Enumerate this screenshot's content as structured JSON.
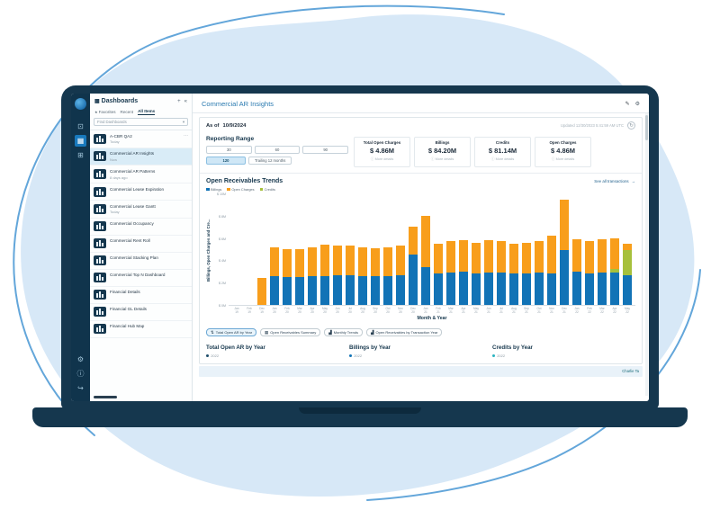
{
  "colors": {
    "accent_blue": "#1273b6",
    "orange": "#f89e1b",
    "green": "#a6c03c",
    "navy": "#15374e",
    "selected_row": "#d9ecf7",
    "blob_fill": "#d7e8f7",
    "blob_stroke": "#63a6da"
  },
  "icons": {
    "plus": "+",
    "collapse": "«",
    "star": "★",
    "chevron_down": "▾",
    "more": "⋯",
    "edit": "✎",
    "gear": "⚙",
    "refresh": "↻",
    "info": "ⓘ",
    "arrow_right": "→",
    "sort": "⇅",
    "table": "▦",
    "chart": "▟",
    "screens": "⊡",
    "dashboard": "▦",
    "apps": "⊞",
    "help": "ⓘ",
    "logout": "↪"
  },
  "rail": {
    "items": [
      {
        "name": "screens-icon",
        "glyph": "⊡",
        "active": false
      },
      {
        "name": "dashboards-icon",
        "glyph": "▦",
        "active": true
      },
      {
        "name": "apps-icon",
        "glyph": "⊞",
        "active": false
      }
    ],
    "bottom": [
      {
        "name": "settings-icon",
        "glyph": "⚙"
      },
      {
        "name": "help-icon",
        "glyph": "ⓘ"
      },
      {
        "name": "logout-icon",
        "glyph": "↪"
      }
    ]
  },
  "sidebar": {
    "title": "Dashboards",
    "search_placeholder": "Find Dashboards",
    "tabs": [
      {
        "label": "Favorites",
        "icon": "★",
        "active": false
      },
      {
        "label": "Recent",
        "active": false
      },
      {
        "label": "All Items",
        "active": true
      }
    ],
    "items": [
      {
        "label": "A-CBR QA2",
        "sub": "Today",
        "selected": false,
        "more": true
      },
      {
        "label": "Commercial AR Insights",
        "sub": "Now",
        "selected": true,
        "more": false
      },
      {
        "label": "Commercial AR Patterns",
        "sub": "8 days ago",
        "selected": false,
        "more": false
      },
      {
        "label": "Commercial Lease Expiration",
        "sub": "",
        "selected": false,
        "more": false
      },
      {
        "label": "Commercial Lease Gantt",
        "sub": "Today",
        "selected": false,
        "more": false
      },
      {
        "label": "Commercial Occupancy",
        "sub": "",
        "selected": false,
        "more": false
      },
      {
        "label": "Commercial Rent Roll",
        "sub": "",
        "selected": false,
        "more": false
      },
      {
        "label": "Commercial Stacking Plan",
        "sub": "",
        "selected": false,
        "more": false
      },
      {
        "label": "Commercial Top N Dashboard",
        "sub": "",
        "selected": false,
        "more": false
      },
      {
        "label": "Financial Details",
        "sub": "",
        "selected": false,
        "more": false
      },
      {
        "label": "Financial GL Details",
        "sub": "",
        "selected": false,
        "more": false
      },
      {
        "label": "Financial Hub Map",
        "sub": "",
        "selected": false,
        "more": false
      }
    ]
  },
  "header": {
    "title": "Commercial AR Insights"
  },
  "toolbar": {
    "as_of_label": "As of",
    "as_of_date": "10/9/2024",
    "updated": "Updated 12/30/2023 5:41:59 AM UTC"
  },
  "reporting_range": {
    "title": "Reporting Range",
    "rows": [
      [
        {
          "label": "30",
          "active": false
        },
        {
          "label": "60",
          "active": false
        },
        {
          "label": "90",
          "active": false
        }
      ],
      [
        {
          "label": "120",
          "active": true
        },
        {
          "label": "Trailing 12 months",
          "active": false
        }
      ]
    ]
  },
  "kpis": [
    {
      "label": "Total Open Charges",
      "value": "$ 4.86M",
      "link": "More details"
    },
    {
      "label": "Billings",
      "value": "$ 84.20M",
      "link": "More details"
    },
    {
      "label": "Credits",
      "value": "$ 81.14M",
      "link": "More details"
    },
    {
      "label": "Open Charges",
      "value": "$ 4.86M",
      "link": "More details"
    }
  ],
  "trends": {
    "title": "Open Receivables Trends",
    "link": "See all transactions",
    "legend": [
      {
        "label": "Billings",
        "color": "#1273b6"
      },
      {
        "label": "Open Charges",
        "color": "#f89e1b"
      },
      {
        "label": "Credits",
        "color": "#a6c03c"
      }
    ],
    "y_axis_label": "Billings, Open Charges and Cre...",
    "x_axis_label": "Month & Year"
  },
  "chart_data": {
    "type": "bar",
    "stacked": true,
    "title": "Open Receivables Trends",
    "xlabel": "Month & Year",
    "ylabel": "Billings, Open Charges and Cre...",
    "unit": "$M",
    "ylim": [
      0,
      10
    ],
    "y_ticks": [
      "$ 10M",
      "$ 8M",
      "$ 6M",
      "$ 4M",
      "$ 2M",
      "$ 0M"
    ],
    "legend_position": "top-left",
    "grid": false,
    "categories": [
      "Jan 19",
      "Feb 19",
      "Dec 19",
      "Jan 20",
      "Feb 20",
      "Mar 20",
      "Apr 20",
      "May 20",
      "Jun 20",
      "Jul 20",
      "Aug 20",
      "Sep 20",
      "Oct 20",
      "Nov 20",
      "Dec 20",
      "Jan 21",
      "Feb 21",
      "Mar 21",
      "Apr 21",
      "May 21",
      "Jun 21",
      "Jul 21",
      "Aug 21",
      "Sep 21",
      "Oct 21",
      "Nov 21",
      "Dec 21",
      "Jan 22",
      "Feb 22",
      "Mar 22",
      "Apr 22",
      "May 22"
    ],
    "series": [
      {
        "name": "Billings",
        "color": "#1273b6",
        "values": [
          0,
          0,
          0,
          2.6,
          2.5,
          2.5,
          2.6,
          2.6,
          2.7,
          2.7,
          2.6,
          2.6,
          2.6,
          2.7,
          4.5,
          3.4,
          2.8,
          2.9,
          3.0,
          2.8,
          2.9,
          2.9,
          2.8,
          2.8,
          2.9,
          2.8,
          4.9,
          3.0,
          2.8,
          2.9,
          2.9,
          2.7
        ]
      },
      {
        "name": "Credits",
        "color": "#a6c03c",
        "values": [
          0,
          0,
          0,
          0,
          0,
          0,
          0,
          0,
          0,
          0,
          0,
          0,
          0,
          0,
          0,
          0,
          0,
          0,
          0,
          0,
          0,
          0,
          0,
          0,
          0,
          0,
          0,
          0,
          0,
          0,
          0.3,
          2.2
        ]
      },
      {
        "name": "Open Charges",
        "color": "#f89e1b",
        "values": [
          0,
          0,
          2.4,
          2.6,
          2.5,
          2.5,
          2.6,
          2.8,
          2.6,
          2.6,
          2.6,
          2.5,
          2.6,
          2.6,
          2.5,
          4.6,
          2.7,
          2.8,
          2.8,
          2.8,
          2.9,
          2.8,
          2.7,
          2.8,
          2.8,
          3.4,
          4.5,
          2.9,
          2.9,
          3.0,
          2.8,
          0.6
        ]
      }
    ]
  },
  "view_pills": [
    {
      "label": "Total Open AR by Year",
      "icon": "sort-icon",
      "glyph": "⇅",
      "active": true
    },
    {
      "label": "Open Receivables Summary",
      "icon": "table-icon",
      "glyph": "▦",
      "active": false
    },
    {
      "label": "Monthly Trends",
      "icon": "chart-icon",
      "glyph": "▟",
      "active": false
    },
    {
      "label": "Open Receivables by Transaction Year",
      "icon": "chart-icon",
      "glyph": "▟",
      "active": false
    }
  ],
  "bottom_sections": [
    {
      "title": "Total Open AR by Year",
      "legend_label": "2022",
      "dot_color": "#1f4e6b"
    },
    {
      "title": "Billings by Year",
      "legend_label": "2022",
      "dot_color": "#1273b6"
    },
    {
      "title": "Credits by Year",
      "legend_label": "2022",
      "dot_color": "#2bb3c0"
    }
  ],
  "footer": {
    "credit": "Charlie Ta"
  }
}
